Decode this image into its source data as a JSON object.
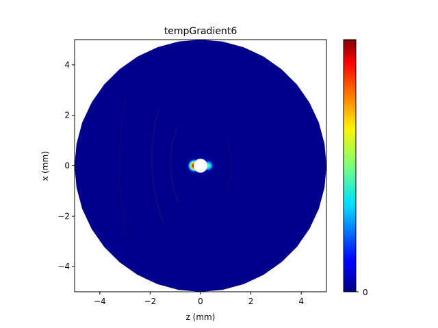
{
  "chart_data": {
    "type": "heatmap",
    "title": "tempGradient6",
    "xlabel": "z (mm)",
    "ylabel": "x (mm)",
    "xlim": [
      -5,
      5
    ],
    "ylim": [
      -5,
      5
    ],
    "x_ticks": [
      -4,
      -2,
      0,
      2,
      4
    ],
    "y_ticks": [
      -4,
      -2,
      0,
      2,
      4
    ],
    "x_tick_labels": [
      "−4",
      "−2",
      "0",
      "2",
      "4"
    ],
    "y_tick_labels": [
      "−4",
      "−2",
      "0",
      "2",
      "4"
    ],
    "domain_shape": "disk",
    "domain_radius": 5,
    "hole_radius": 0.25,
    "background_level": 0.0,
    "hotspots": [
      {
        "z": -0.25,
        "x": 0.0,
        "level": 1.0
      },
      {
        "z": 0.3,
        "x": 0.0,
        "level": 0.5
      }
    ],
    "colormap": "jet",
    "colorbar": {
      "tick_labels": [
        "0"
      ],
      "tick_levels": [
        0
      ]
    },
    "colors": {
      "field": "#00008b",
      "hole": "#ffffff"
    }
  }
}
